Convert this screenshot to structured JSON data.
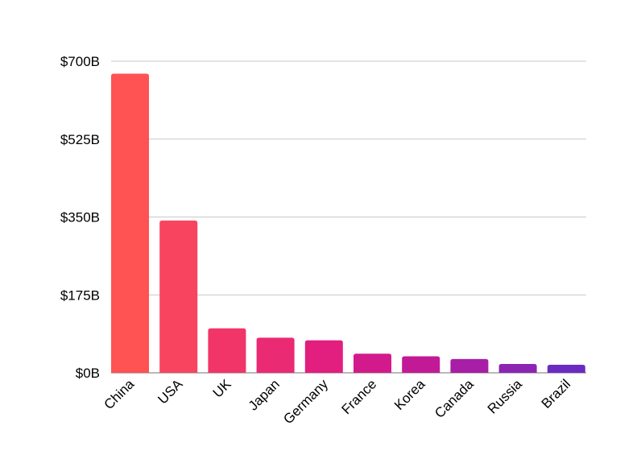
{
  "chart_data": {
    "type": "bar",
    "title": "",
    "xlabel": "",
    "ylabel": "",
    "categories": [
      "China",
      "USA",
      "UK",
      "Japan",
      "Germany",
      "France",
      "Korea",
      "Canada",
      "Russia",
      "Brazil"
    ],
    "values": [
      672,
      342,
      100,
      79,
      73,
      43,
      37,
      31,
      20,
      18
    ],
    "ylim": [
      0,
      700
    ],
    "yticks": [
      0,
      175,
      350,
      525,
      700
    ],
    "ytick_labels": [
      "$0B",
      "$175B",
      "$350B",
      "$525B",
      "$700B"
    ],
    "grid": true,
    "legend": "none",
    "bar_colors": [
      "#ff5252",
      "#f9445f",
      "#f13568",
      "#ea2a73",
      "#e21e7e",
      "#d31a8c",
      "#c21a97",
      "#a81ea6",
      "#8b25b2",
      "#6b2bc2"
    ]
  }
}
